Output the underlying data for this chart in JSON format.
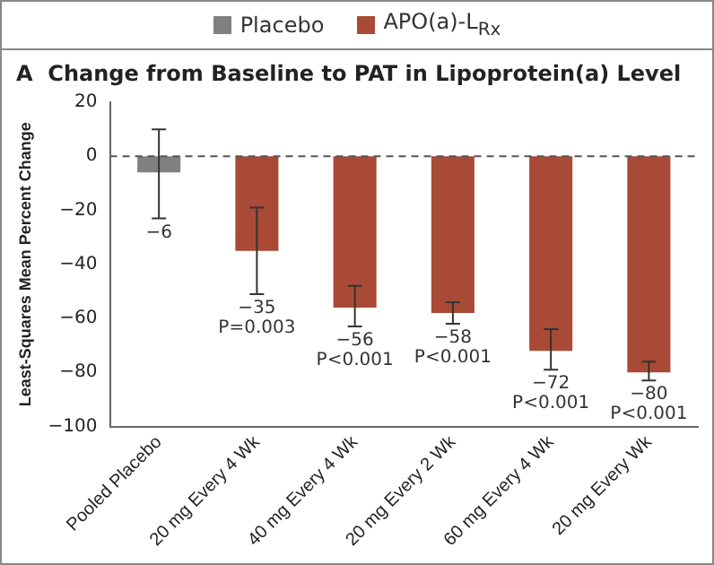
{
  "chart_data": {
    "type": "bar",
    "title": "A  Change from Baseline to PAT in Lipoprotein(a) Level",
    "ylabel": "Least-Squares Mean Percent Change",
    "categories": [
      "Pooled Placebo",
      "20 mg Every 4 Wk",
      "40 mg Every 4 Wk",
      "20 mg Every 2 Wk",
      "60 mg Every 4 Wk",
      "20 mg Every Wk"
    ],
    "stacked": true,
    "series": [
      {
        "name": "Placebo",
        "color": "#808080",
        "values": [
          -6,
          null,
          null,
          null,
          null,
          null
        ],
        "errors": [
          [
            -23,
            10
          ],
          null,
          null,
          null,
          null,
          null
        ],
        "value_labels": [
          "−6",
          null,
          null,
          null,
          null,
          null
        ]
      },
      {
        "name": "APO(a)-L$_{Rx}$",
        "color": "#a94a36",
        "values": [
          null,
          -35,
          -56,
          -58,
          -72,
          -80
        ],
        "errors": [
          null,
          [
            -51,
            -19
          ],
          [
            -63,
            -48
          ],
          [
            -62,
            -54
          ],
          [
            -79,
            -64
          ],
          [
            -83,
            -76
          ]
        ],
        "value_labels": [
          null,
          "−35\nP=0.003",
          "−56\nP<0.001",
          "−58\nP<0.001",
          "−72\nP<0.001",
          "−80\nP<0.001"
        ]
      }
    ],
    "ylim": [
      -100,
      20
    ],
    "yticks": [
      -100,
      -80,
      -60,
      -40,
      -20,
      0,
      20
    ],
    "grid": false,
    "legend": "top",
    "ref_lines": [
      {
        "axis": "y",
        "value": 0,
        "line_style": "dashed",
        "color": "#555555"
      }
    ]
  }
}
